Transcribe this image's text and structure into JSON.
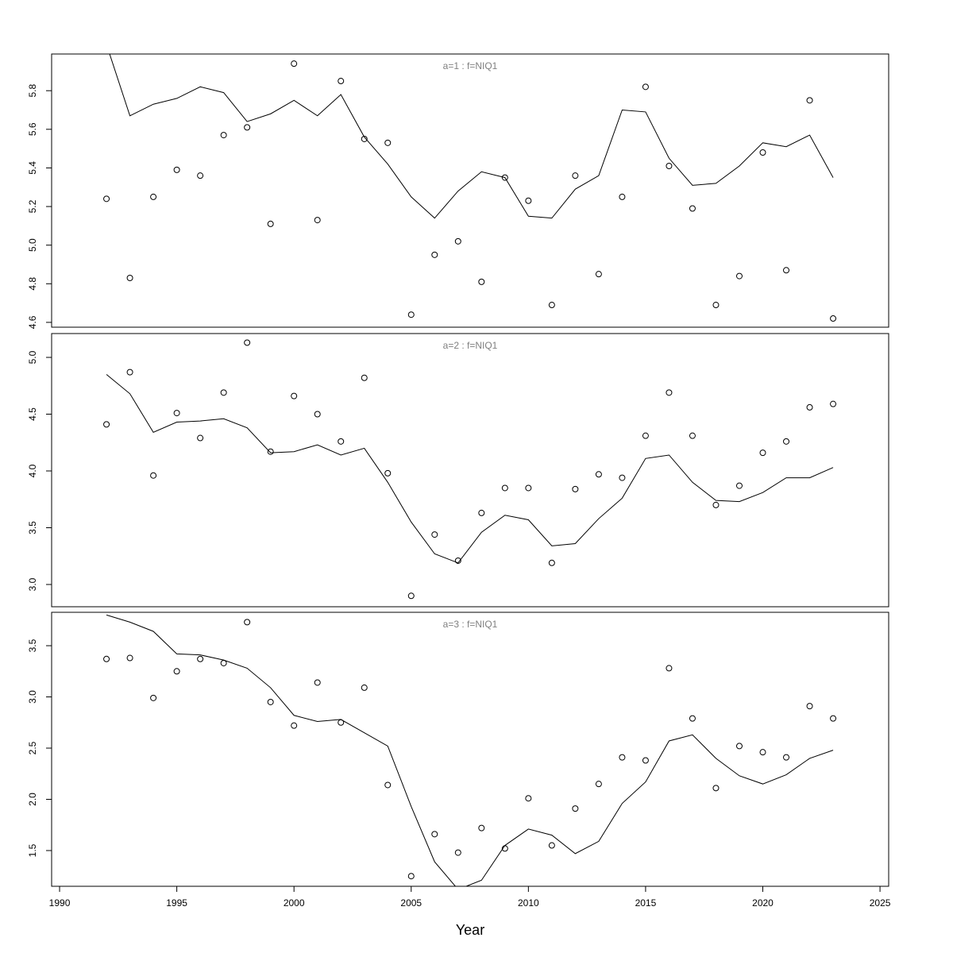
{
  "chart_data": [
    {
      "type": "line",
      "title": "a=1 : f=NIQ1",
      "x": [
        1992,
        1993,
        1994,
        1995,
        1996,
        1997,
        1998,
        1999,
        2000,
        2001,
        2002,
        2003,
        2004,
        2005,
        2006,
        2007,
        2008,
        2009,
        2010,
        2011,
        2012,
        2013,
        2014,
        2015,
        2016,
        2017,
        2018,
        2019,
        2020,
        2021,
        2022,
        2023
      ],
      "series": [
        {
          "style": "points",
          "color": "#000000",
          "values": [
            5.24,
            4.83,
            5.25,
            5.39,
            5.36,
            5.57,
            5.61,
            5.11,
            5.94,
            5.13,
            5.85,
            5.55,
            5.53,
            4.64,
            4.95,
            5.02,
            4.81,
            5.35,
            5.23,
            4.69,
            5.36,
            4.85,
            5.25,
            5.82,
            5.41,
            5.19,
            4.69,
            4.84,
            5.48,
            4.87,
            5.75,
            4.62
          ]
        },
        {
          "style": "line",
          "color": "#000000",
          "values": [
            6.04,
            5.67,
            5.73,
            5.76,
            5.82,
            5.79,
            5.64,
            5.68,
            5.75,
            5.67,
            5.78,
            5.56,
            5.42,
            5.25,
            5.14,
            5.28,
            5.38,
            5.35,
            5.15,
            5.14,
            5.29,
            5.36,
            5.7,
            5.69,
            5.45,
            5.31,
            5.32,
            5.41,
            5.53,
            5.51,
            5.57,
            5.35
          ]
        }
      ],
      "xlim": [
        1989.66,
        2025.37
      ],
      "ylim": [
        4.575,
        5.99
      ],
      "yticks": [
        4.6,
        4.8,
        {
          "value": 5,
          "label": "5.0"
        },
        5.2,
        5.4,
        5.6,
        5.8
      ]
    },
    {
      "type": "line",
      "title": "a=2 : f=NIQ1",
      "x": [
        1992,
        1993,
        1994,
        1995,
        1996,
        1997,
        1998,
        1999,
        2000,
        2001,
        2002,
        2003,
        2004,
        2005,
        2006,
        2007,
        2008,
        2009,
        2010,
        2011,
        2012,
        2013,
        2014,
        2015,
        2016,
        2017,
        2018,
        2019,
        2020,
        2021,
        2022,
        2023
      ],
      "series": [
        {
          "style": "points",
          "color": "#000000",
          "values": [
            4.41,
            4.87,
            3.96,
            4.51,
            4.29,
            4.69,
            5.13,
            4.17,
            4.66,
            4.5,
            4.26,
            4.82,
            3.98,
            2.9,
            3.44,
            3.21,
            3.63,
            3.85,
            3.85,
            3.19,
            3.84,
            3.97,
            3.94,
            4.31,
            4.69,
            4.31,
            3.7,
            3.87,
            4.16,
            4.26,
            4.56,
            4.59
          ]
        },
        {
          "style": "line",
          "color": "#000000",
          "values": [
            4.85,
            4.68,
            4.34,
            4.43,
            4.44,
            4.46,
            4.38,
            4.16,
            4.17,
            4.23,
            4.14,
            4.2,
            3.9,
            3.55,
            3.27,
            3.19,
            3.46,
            3.61,
            3.57,
            3.34,
            3.36,
            3.58,
            3.76,
            4.11,
            4.14,
            3.9,
            3.74,
            3.73,
            3.81,
            3.94,
            3.94,
            4.03
          ]
        }
      ],
      "xlim": [
        1989.66,
        2025.37
      ],
      "ylim": [
        2.804,
        5.21
      ],
      "yticks": [
        {
          "value": 3,
          "label": "3.0"
        },
        3.5,
        {
          "value": 4,
          "label": "4.0"
        },
        4.5,
        {
          "value": 5,
          "label": "5.0"
        }
      ]
    },
    {
      "type": "line",
      "title": "a=3 : f=NIQ1",
      "xlabel": "Year",
      "x": [
        1992,
        1993,
        1994,
        1995,
        1996,
        1997,
        1998,
        1999,
        2000,
        2001,
        2002,
        2003,
        2004,
        2005,
        2006,
        2007,
        2008,
        2009,
        2010,
        2011,
        2012,
        2013,
        2014,
        2015,
        2016,
        2017,
        2018,
        2019,
        2020,
        2021,
        2022,
        2023
      ],
      "series": [
        {
          "style": "points",
          "color": "#000000",
          "values": [
            3.37,
            3.38,
            2.99,
            3.25,
            3.37,
            3.33,
            3.73,
            2.95,
            2.72,
            3.14,
            2.75,
            3.09,
            2.14,
            1.25,
            1.66,
            1.48,
            1.72,
            1.52,
            2.01,
            1.55,
            1.91,
            2.15,
            2.41,
            2.38,
            3.28,
            2.79,
            2.11,
            2.52,
            2.46,
            2.41,
            2.91,
            2.79
          ]
        },
        {
          "style": "line",
          "color": "#000000",
          "values": [
            3.8,
            3.73,
            3.64,
            3.42,
            3.41,
            3.36,
            3.28,
            3.09,
            2.82,
            2.76,
            2.78,
            2.65,
            2.52,
            1.93,
            1.39,
            1.12,
            1.21,
            1.55,
            1.71,
            1.65,
            1.47,
            1.59,
            1.96,
            2.17,
            2.57,
            2.63,
            2.4,
            2.23,
            2.15,
            2.24,
            2.4,
            2.48
          ]
        }
      ],
      "xlim": [
        1989.66,
        2025.37
      ],
      "ylim": [
        1.151,
        3.826
      ],
      "yticks": [
        1.5,
        {
          "value": 2,
          "label": "2.0"
        },
        2.5,
        {
          "value": 3,
          "label": "3.0"
        },
        3.5
      ],
      "xticks": [
        1990,
        1995,
        2000,
        2005,
        2010,
        2015,
        2020,
        2025
      ]
    }
  ]
}
